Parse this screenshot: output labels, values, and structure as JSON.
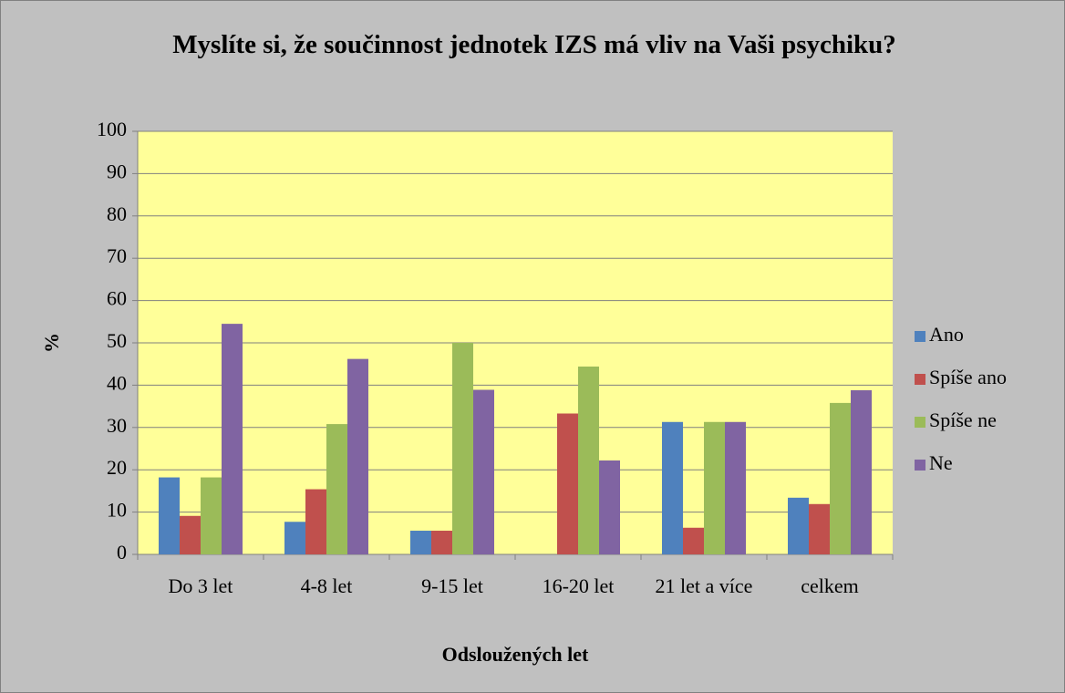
{
  "chart_data": {
    "type": "bar",
    "title": "Myslíte si, že součinnost jednotek IZS má vliv na Vaši psychiku?",
    "x_label": "Odsloužených let",
    "y_label": "%",
    "categories": [
      "Do 3 let",
      "4-8 let",
      "9-15 let",
      "16-20 let",
      "21 let a více",
      "celkem"
    ],
    "series": [
      {
        "name": "Ano",
        "color": "#4f81bd",
        "values": [
          18.2,
          7.7,
          5.6,
          0,
          31.3,
          13.4
        ]
      },
      {
        "name": "Spíše ano",
        "color": "#c0504d",
        "values": [
          9.1,
          15.4,
          5.6,
          33.3,
          6.3,
          11.9
        ]
      },
      {
        "name": "Spíše ne",
        "color": "#9bbb59",
        "values": [
          18.2,
          30.8,
          50,
          44.4,
          31.3,
          35.8
        ]
      },
      {
        "name": "Ne",
        "color": "#8064a2",
        "values": [
          54.5,
          46.2,
          38.9,
          22.2,
          31.3,
          38.8
        ]
      }
    ],
    "ylim": [
      0,
      100
    ],
    "yticks": [
      0,
      10,
      20,
      30,
      40,
      50,
      60,
      70,
      80,
      90,
      100
    ],
    "grid": true,
    "legend": "right"
  }
}
